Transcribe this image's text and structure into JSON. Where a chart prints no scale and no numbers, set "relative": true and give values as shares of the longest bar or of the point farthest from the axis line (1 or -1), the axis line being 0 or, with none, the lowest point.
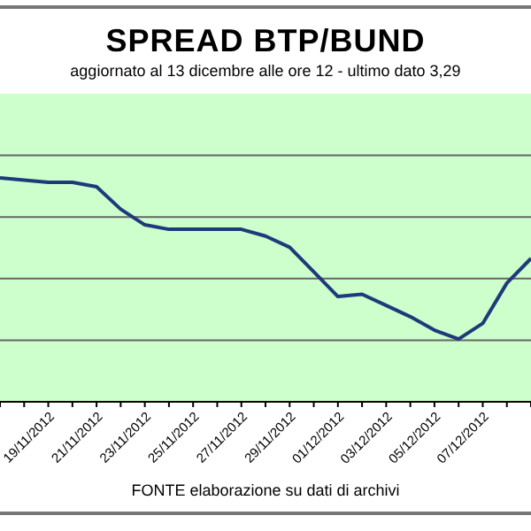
{
  "chart_data": {
    "type": "line",
    "relative": true,
    "title": "SPREAD  BTP/BUND",
    "subtitle": "aggiornato al 13 dicembre alle ore 12 - ultimo dato 3,29",
    "categories": [
      null,
      null,
      "19/11/2012",
      null,
      "21/11/2012",
      null,
      "23/11/2012",
      null,
      "25/11/2012",
      null,
      "27/11/2012",
      null,
      "29/11/2012",
      null,
      "01/12/2012",
      null,
      "03/12/2012",
      null,
      "05/12/2012",
      null,
      "07/12/2012",
      null,
      null
    ],
    "series": [
      {
        "color": "#1f3a7a",
        "values": [
          1,
          0.99,
          0.98,
          0.98,
          0.96,
          0.86,
          0.79,
          0.77,
          0.77,
          0.77,
          0.77,
          0.74,
          0.69,
          0.58,
          0.47,
          0.48,
          0.43,
          0.38,
          0.32,
          0.28,
          0.35,
          0.53,
          0.64
        ]
      }
    ],
    "grid": "y",
    "legend": false,
    "marker": "none",
    "annotations": [
      "FONTE elaborazione su dati di archivi"
    ]
  }
}
